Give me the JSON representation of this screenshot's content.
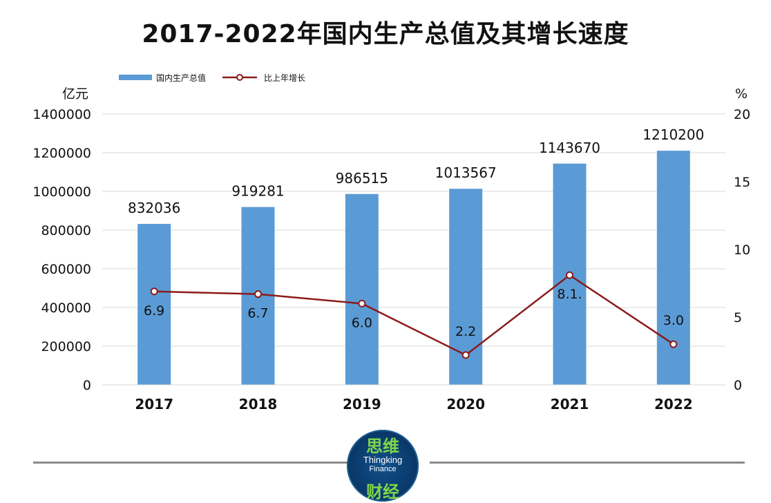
{
  "title": "2017-2022年国内生产总值及其增长速度",
  "chart_data": {
    "type": "bar",
    "categories": [
      "2017",
      "2018",
      "2019",
      "2020",
      "2021",
      "2022"
    ],
    "series": [
      {
        "name": "国内生产总值",
        "type": "bar",
        "axis": "left",
        "color": "#5b9bd5",
        "values": [
          832036,
          919281,
          986515,
          1013567,
          1143670,
          1210200
        ],
        "labels": [
          "832036",
          "919281",
          "986515",
          "1013567",
          "1143670",
          "1210200"
        ]
      },
      {
        "name": "比上年增长",
        "type": "line",
        "axis": "right",
        "color": "#8b1a1a",
        "values": [
          6.9,
          6.7,
          6.0,
          2.2,
          8.1,
          3.0
        ],
        "labels": [
          "6.9",
          "6.7",
          "6.0",
          "2.2",
          "8.1.",
          "3.0"
        ]
      }
    ],
    "y_left": {
      "unit": "亿元",
      "ylim": [
        0,
        1400000
      ],
      "ticks": [
        "0",
        "200000",
        "400000",
        "600000",
        "800000",
        "1000000",
        "1200000",
        "1400000"
      ]
    },
    "y_right": {
      "unit": "%",
      "ylim": [
        0,
        20
      ],
      "ticks": [
        "0",
        "5",
        "10",
        "15",
        "20"
      ]
    },
    "grid": true,
    "legend": "top-left"
  },
  "logo": {
    "cn_top": "思维",
    "en_line1": "Thingking",
    "en_line2": "Finance",
    "cn_bottom": "财经"
  }
}
